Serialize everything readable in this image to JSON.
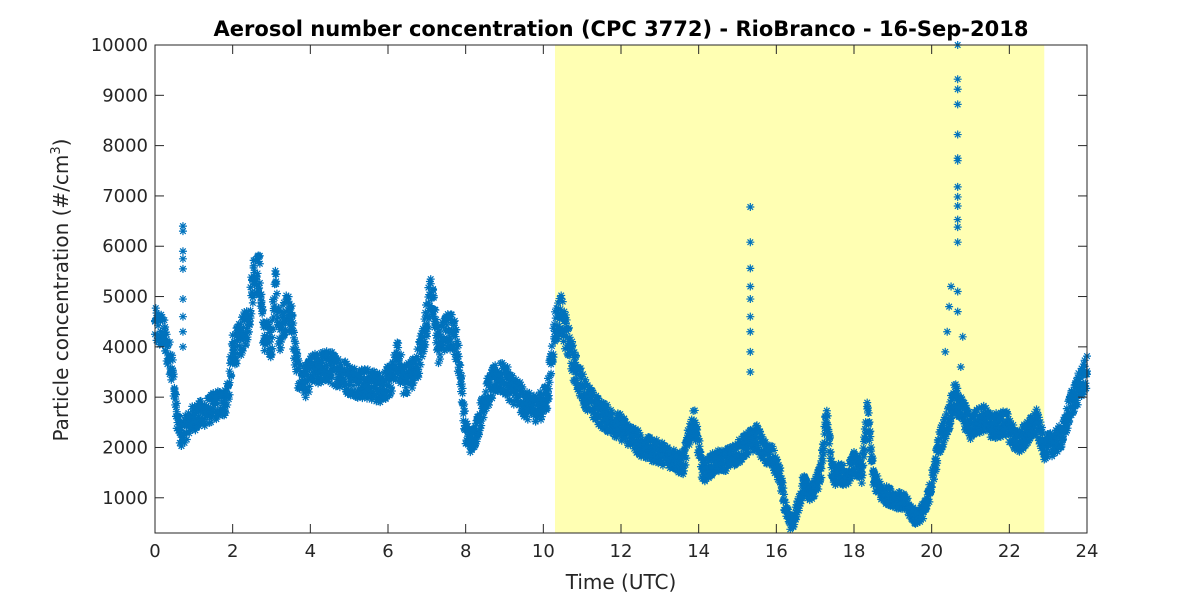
{
  "chart_data": {
    "type": "scatter",
    "title": "Aerosol number concentration (CPC 3772) - RioBranco - 16-Sep-2018",
    "xlabel": "Time (UTC)",
    "ylabel_main": "Particle concentration (#/cm",
    "ylabel_sup": "3",
    "ylabel_close": ")",
    "xlim": [
      0,
      24
    ],
    "ylim": [
      300,
      10000
    ],
    "xticks": [
      0,
      2,
      4,
      6,
      8,
      10,
      12,
      14,
      16,
      18,
      20,
      22,
      24
    ],
    "yticks": [
      1000,
      2000,
      3000,
      4000,
      5000,
      6000,
      7000,
      8000,
      9000,
      10000
    ],
    "grid": false,
    "marker": "asterisk",
    "series_color": "#0072BD",
    "shaded_region": {
      "x_start": 10.3,
      "x_end": 22.9,
      "color": "#FFFFB3"
    },
    "trend": [
      [
        0.0,
        4400
      ],
      [
        0.2,
        4300
      ],
      [
        0.3,
        4000
      ],
      [
        0.45,
        3600
      ],
      [
        0.55,
        2700
      ],
      [
        0.65,
        2200
      ],
      [
        0.8,
        2400
      ],
      [
        1.0,
        2600
      ],
      [
        1.3,
        2700
      ],
      [
        1.6,
        2850
      ],
      [
        1.8,
        2900
      ],
      [
        1.9,
        3200
      ],
      [
        2.0,
        3900
      ],
      [
        2.2,
        4150
      ],
      [
        2.4,
        4500
      ],
      [
        2.55,
        5500
      ],
      [
        2.7,
        5400
      ],
      [
        2.8,
        4200
      ],
      [
        3.0,
        4100
      ],
      [
        3.1,
        5300
      ],
      [
        3.2,
        4200
      ],
      [
        3.3,
        4600
      ],
      [
        3.5,
        4700
      ],
      [
        3.6,
        3900
      ],
      [
        3.7,
        3400
      ],
      [
        3.9,
        3300
      ],
      [
        4.0,
        3500
      ],
      [
        4.3,
        3600
      ],
      [
        4.5,
        3600
      ],
      [
        4.8,
        3500
      ],
      [
        5.0,
        3350
      ],
      [
        5.5,
        3250
      ],
      [
        5.8,
        3200
      ],
      [
        6.1,
        3350
      ],
      [
        6.25,
        3800
      ],
      [
        6.4,
        3350
      ],
      [
        6.7,
        3500
      ],
      [
        6.9,
        4100
      ],
      [
        7.1,
        5100
      ],
      [
        7.3,
        4000
      ],
      [
        7.5,
        4300
      ],
      [
        7.7,
        4300
      ],
      [
        7.85,
        3600
      ],
      [
        8.0,
        2300
      ],
      [
        8.15,
        2100
      ],
      [
        8.3,
        2400
      ],
      [
        8.5,
        3000
      ],
      [
        8.8,
        3400
      ],
      [
        9.0,
        3350
      ],
      [
        9.3,
        3100
      ],
      [
        9.6,
        2800
      ],
      [
        9.9,
        2800
      ],
      [
        10.1,
        3000
      ],
      [
        10.3,
        4400
      ],
      [
        10.45,
        4700
      ],
      [
        10.6,
        4200
      ],
      [
        10.8,
        3600
      ],
      [
        11.0,
        3200
      ],
      [
        11.3,
        2800
      ],
      [
        11.6,
        2600
      ],
      [
        12.0,
        2400
      ],
      [
        12.3,
        2200
      ],
      [
        12.6,
        2000
      ],
      [
        13.0,
        1900
      ],
      [
        13.3,
        1800
      ],
      [
        13.6,
        1650
      ],
      [
        13.8,
        2400
      ],
      [
        13.9,
        2500
      ],
      [
        14.1,
        1500
      ],
      [
        14.4,
        1700
      ],
      [
        14.7,
        1750
      ],
      [
        15.0,
        1900
      ],
      [
        15.3,
        2100
      ],
      [
        15.5,
        2200
      ],
      [
        15.7,
        1900
      ],
      [
        15.9,
        1800
      ],
      [
        16.1,
        1400
      ],
      [
        16.25,
        700
      ],
      [
        16.4,
        450
      ],
      [
        16.55,
        800
      ],
      [
        16.7,
        1300
      ],
      [
        16.85,
        1100
      ],
      [
        17.0,
        1200
      ],
      [
        17.15,
        1500
      ],
      [
        17.3,
        2700
      ],
      [
        17.45,
        1400
      ],
      [
        17.6,
        1500
      ],
      [
        17.8,
        1400
      ],
      [
        18.0,
        1700
      ],
      [
        18.2,
        1500
      ],
      [
        18.35,
        2700
      ],
      [
        18.5,
        1400
      ],
      [
        18.7,
        1100
      ],
      [
        19.0,
        1000
      ],
      [
        19.3,
        900
      ],
      [
        19.6,
        600
      ],
      [
        19.85,
        800
      ],
      [
        20.0,
        1300
      ],
      [
        20.2,
        2100
      ],
      [
        20.4,
        2500
      ],
      [
        20.6,
        3000
      ],
      [
        20.8,
        2700
      ],
      [
        21.0,
        2400
      ],
      [
        21.3,
        2600
      ],
      [
        21.6,
        2400
      ],
      [
        21.9,
        2500
      ],
      [
        22.2,
        2100
      ],
      [
        22.5,
        2300
      ],
      [
        22.7,
        2500
      ],
      [
        22.9,
        2000
      ],
      [
        23.2,
        2100
      ],
      [
        23.4,
        2300
      ],
      [
        23.6,
        2900
      ],
      [
        23.8,
        3200
      ],
      [
        24.0,
        3500
      ]
    ],
    "spikes": [
      [
        0.72,
        6400
      ],
      [
        0.72,
        6300
      ],
      [
        0.72,
        5900
      ],
      [
        0.72,
        5750
      ],
      [
        0.72,
        5550
      ],
      [
        0.72,
        4950
      ],
      [
        0.72,
        4600
      ],
      [
        0.72,
        4300
      ],
      [
        0.72,
        4000
      ],
      [
        15.33,
        6780
      ],
      [
        15.33,
        6080
      ],
      [
        15.33,
        5560
      ],
      [
        15.33,
        5200
      ],
      [
        15.33,
        4950
      ],
      [
        15.33,
        4600
      ],
      [
        15.33,
        4300
      ],
      [
        15.33,
        3900
      ],
      [
        15.33,
        3500
      ],
      [
        20.67,
        10000
      ],
      [
        20.67,
        9320
      ],
      [
        20.67,
        9120
      ],
      [
        20.67,
        8820
      ],
      [
        20.67,
        8220
      ],
      [
        20.67,
        7750
      ],
      [
        20.67,
        7700
      ],
      [
        20.67,
        7180
      ],
      [
        20.67,
        6980
      ],
      [
        20.67,
        6800
      ],
      [
        20.67,
        6530
      ],
      [
        20.67,
        6380
      ],
      [
        20.67,
        6080
      ],
      [
        20.67,
        5100
      ],
      [
        20.67,
        4700
      ],
      [
        20.5,
        5200
      ],
      [
        20.45,
        4800
      ],
      [
        20.4,
        4300
      ],
      [
        20.35,
        3900
      ],
      [
        20.8,
        4200
      ],
      [
        20.75,
        3600
      ]
    ]
  }
}
